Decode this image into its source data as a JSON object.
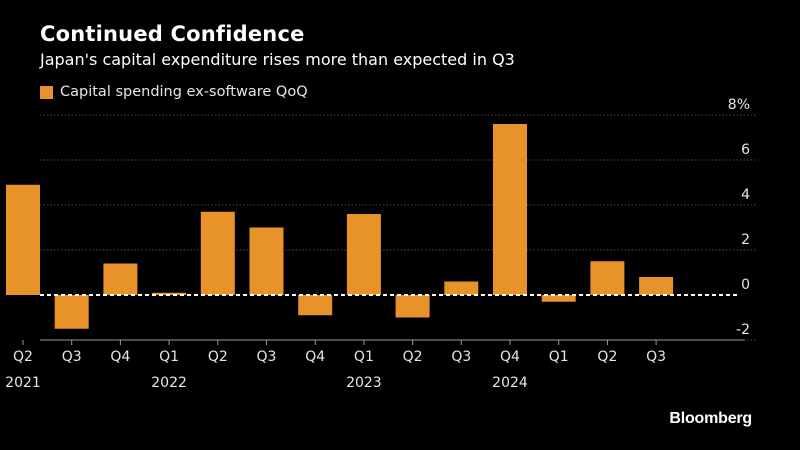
{
  "chart_data": {
    "type": "bar",
    "title": "Continued Confidence",
    "subtitle": "Japan's capital expenditure rises more than expected in Q3",
    "series": [
      {
        "name": "Capital spending ex-software QoQ",
        "color": "#e8922a",
        "values": [
          4.9,
          -1.5,
          1.4,
          0.1,
          3.7,
          3.0,
          -0.9,
          3.6,
          -1.0,
          0.6,
          7.6,
          -0.3,
          1.5,
          0.8
        ]
      }
    ],
    "categories": [
      "Q2",
      "Q3",
      "Q4",
      "Q1",
      "Q2",
      "Q3",
      "Q4",
      "Q1",
      "Q2",
      "Q3",
      "Q4",
      "Q1",
      "Q2",
      "Q3"
    ],
    "year_labels": [
      {
        "index": 0,
        "label": "2021"
      },
      {
        "index": 3,
        "label": "2022"
      },
      {
        "index": 7,
        "label": "2023"
      },
      {
        "index": 10,
        "label": "2024"
      }
    ],
    "y_ticks": [
      {
        "value": 8,
        "label": "8%"
      },
      {
        "value": 6,
        "label": "6"
      },
      {
        "value": 4,
        "label": "4"
      },
      {
        "value": 2,
        "label": "2"
      },
      {
        "value": 0,
        "label": "0"
      },
      {
        "value": -2,
        "label": "-2"
      }
    ],
    "ylim": [
      -2,
      8
    ],
    "xlabel": "",
    "ylabel": "",
    "grid": true,
    "legend_position": "top-left"
  },
  "source": "Bloomberg"
}
